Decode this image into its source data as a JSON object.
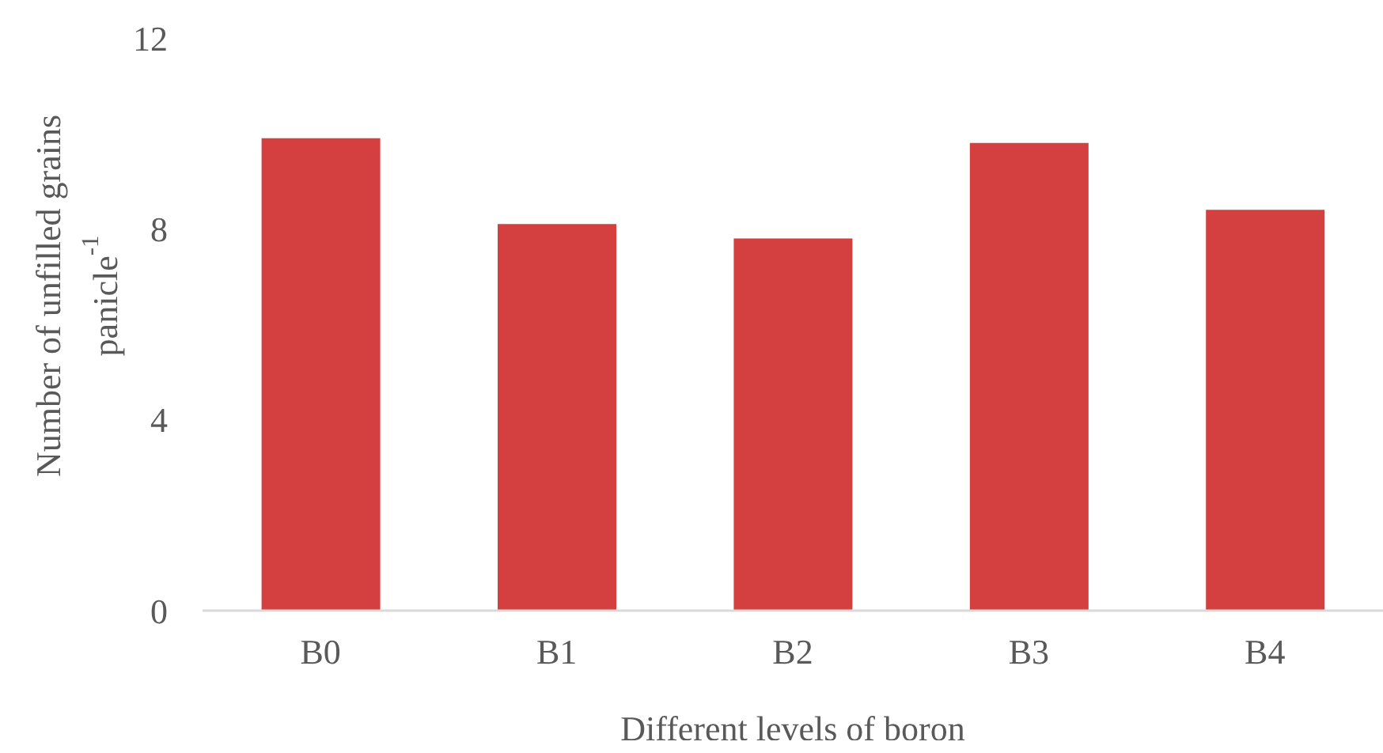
{
  "chart_data": {
    "type": "bar",
    "xlabel": "Different levels of boron",
    "ylabel": "Number of unfilled grains panicle$^{-1}$",
    "categories": [
      "B0",
      "B1",
      "B2",
      "B3",
      "B4"
    ],
    "values": [
      9.9,
      8.1,
      7.8,
      9.8,
      8.4
    ],
    "color": "#d43f3f",
    "ylim": [
      0,
      12
    ],
    "yticks": [
      0,
      4,
      8,
      12
    ],
    "grid": false
  }
}
